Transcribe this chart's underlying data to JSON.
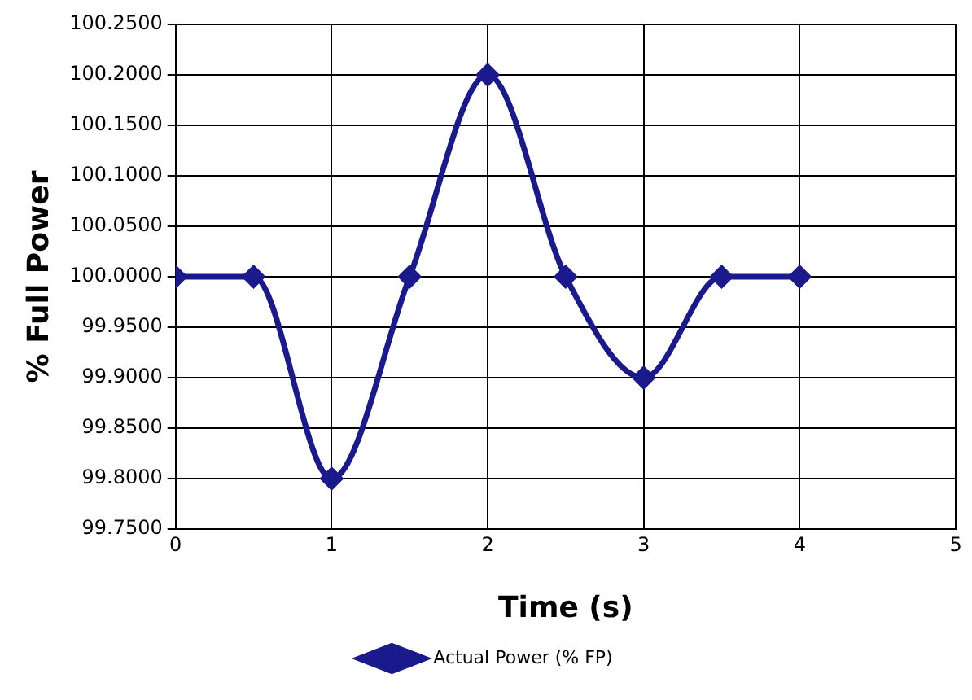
{
  "chart_data": {
    "type": "line",
    "xlabel": "Time (s)",
    "ylabel": "% Full Power",
    "x": [
      0,
      0.5,
      1,
      1.5,
      2,
      2.5,
      3,
      3.5,
      4
    ],
    "series": [
      {
        "name": "Actual Power (% FP)",
        "color": "#1a1a8c",
        "values": [
          100,
          100,
          99.8,
          100,
          100.2,
          100,
          99.9,
          100,
          100
        ]
      }
    ],
    "xlim": [
      0,
      5
    ],
    "xticks": [
      0,
      1,
      2,
      3,
      4,
      5
    ],
    "ylim": [
      99.75,
      100.25
    ],
    "yticks": [
      {
        "value": 99.75,
        "label": "99.7500"
      },
      {
        "value": 99.8,
        "label": "99.8000"
      },
      {
        "value": 99.85,
        "label": "99.8500"
      },
      {
        "value": 99.9,
        "label": "99.9000"
      },
      {
        "value": 99.95,
        "label": "99.9500"
      },
      {
        "value": 100,
        "label": "100.0000"
      },
      {
        "value": 100.05,
        "label": "100.0500"
      },
      {
        "value": 100.1,
        "label": "100.1000"
      },
      {
        "value": 100.15,
        "label": "100.1500"
      },
      {
        "value": 100.2,
        "label": "100.2000"
      },
      {
        "value": 100.25,
        "label": "100.2500"
      }
    ],
    "grid": true,
    "legend": "bottom",
    "marker": "diamond",
    "line_style": "solid"
  }
}
